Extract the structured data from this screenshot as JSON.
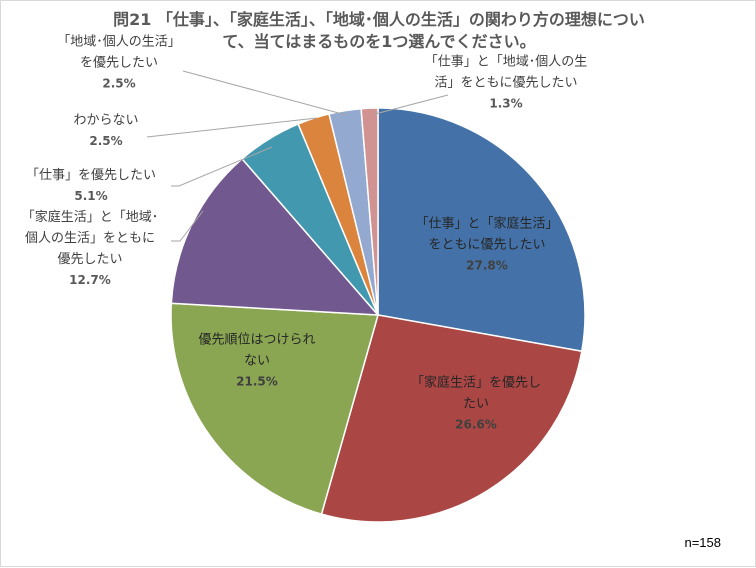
{
  "chart_data": {
    "type": "pie",
    "title_lines": [
      "問21 「仕事」、「家庭生活」、「地域･個人の生活」の関わり方の理想につい",
      "て、当てはまるものを1つ選んでください。"
    ],
    "slices": [
      {
        "label_lines": [
          "「仕事」と「家庭生活」",
          "をともに優先したい"
        ],
        "value": 27.8,
        "value_label": "27.8%",
        "color": "#4472a8"
      },
      {
        "label_lines": [
          "「家庭生活」を優先し",
          "たい"
        ],
        "value": 26.6,
        "value_label": "26.6%",
        "color": "#aa4644"
      },
      {
        "label_lines": [
          "優先順位はつけられ",
          "ない"
        ],
        "value": 21.5,
        "value_label": "21.5%",
        "color": "#8ba653"
      },
      {
        "label_lines": [
          "「家庭生活」と「地域･",
          "個人の生活」をともに",
          "優先したい"
        ],
        "value": 12.7,
        "value_label": "12.7%",
        "color": "#71588f"
      },
      {
        "label_lines": [
          "「仕事」を優先したい"
        ],
        "value": 5.1,
        "value_label": "5.1%",
        "color": "#4298af"
      },
      {
        "label_lines": [
          "わからない"
        ],
        "value": 2.5,
        "value_label": "2.5%",
        "color": "#db843d"
      },
      {
        "label_lines": [
          "「地域･個人の生活」",
          "を優先したい"
        ],
        "value": 2.5,
        "value_label": "2.5%",
        "color": "#93a9cf"
      },
      {
        "label_lines": [
          "「仕事」と「地域･個人の生",
          "活」をともに優先したい"
        ],
        "value": 1.3,
        "value_label": "1.3%",
        "color": "#d19392"
      }
    ],
    "note": "n=158"
  }
}
